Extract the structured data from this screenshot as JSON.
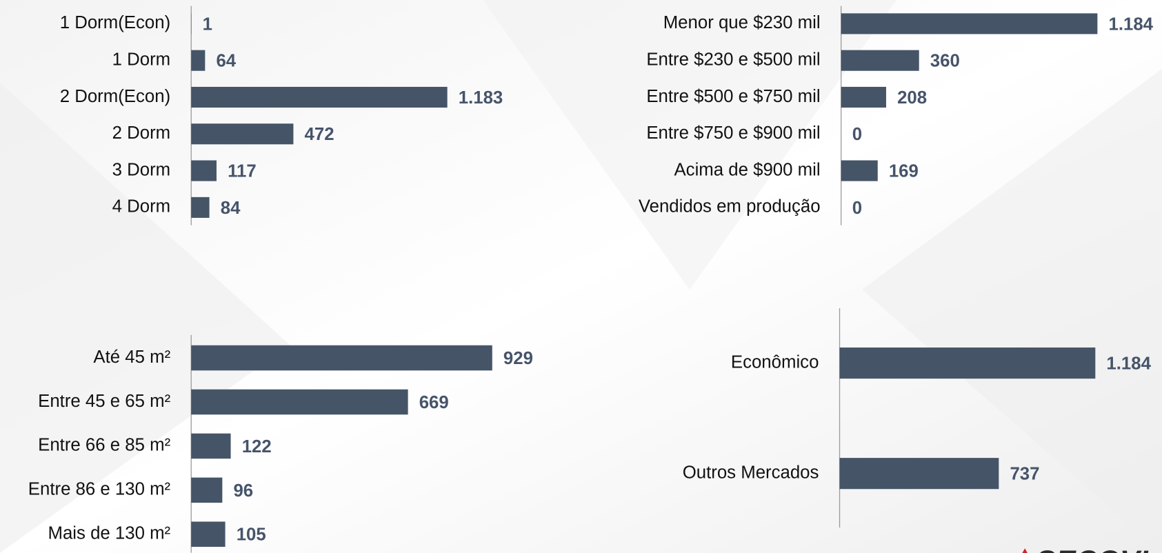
{
  "chart_data": [
    {
      "type": "barh",
      "categories": [
        "1 Dorm(Econ)",
        "1 Dorm",
        "2 Dorm(Econ)",
        "2 Dorm",
        "3 Dorm",
        "4 Dorm"
      ],
      "values": [
        1,
        64,
        1183,
        472,
        117,
        84
      ],
      "value_labels": [
        "1",
        "64",
        "1.183",
        "472",
        "117",
        "84"
      ],
      "color": "#465468",
      "xlim": [
        0,
        1400
      ]
    },
    {
      "type": "barh",
      "categories": [
        "Menor que $230 mil",
        "Entre $230 e $500 mil",
        "Entre $500 e $750 mil",
        "Entre $750 e $900 mil",
        "Acima de $900 mil",
        "Vendidos em produção"
      ],
      "values": [
        1184,
        360,
        208,
        0,
        169,
        0
      ],
      "value_labels": [
        "1.184",
        "360",
        "208",
        "0",
        "169",
        "0"
      ],
      "color": "#465468",
      "xlim": [
        0,
        1400
      ]
    },
    {
      "type": "barh",
      "categories": [
        "Até 45 m²",
        "Entre 45 e 65 m²",
        "Entre 66 e 85 m²",
        "Entre 86 e 130 m²",
        "Mais de 130 m²"
      ],
      "values": [
        929,
        669,
        122,
        96,
        105
      ],
      "value_labels": [
        "929",
        "669",
        "122",
        "96",
        "105"
      ],
      "color": "#465468",
      "xlim": [
        0,
        1100
      ]
    },
    {
      "type": "barh",
      "categories": [
        "Econômico",
        "Outros Mercados"
      ],
      "values": [
        1184,
        737
      ],
      "value_labels": [
        "1.184",
        "737"
      ],
      "color": "#465468",
      "xlim": [
        0,
        1400
      ]
    }
  ],
  "logo": {
    "text": "SECOVI"
  }
}
